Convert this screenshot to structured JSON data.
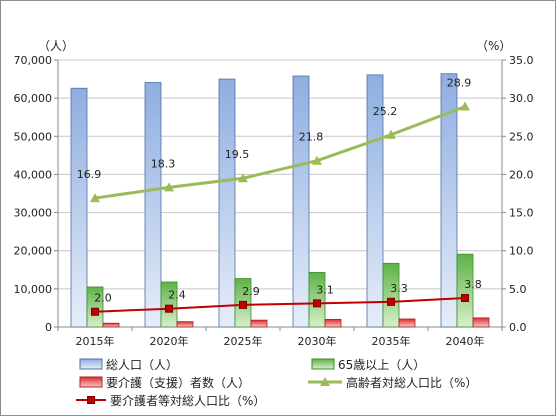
{
  "chart_data": {
    "type": "bar",
    "categories": [
      "2015年",
      "2020年",
      "2025年",
      "2030年",
      "2035年",
      "2040年"
    ],
    "y_left": {
      "unit_label": "（人）",
      "range": [
        0,
        70000
      ],
      "ticks": [
        0,
        10000,
        20000,
        30000,
        40000,
        50000,
        60000,
        70000
      ],
      "tick_labels": [
        "0",
        "10,000",
        "20,000",
        "30,000",
        "40,000",
        "50,000",
        "60,000",
        "70,000"
      ]
    },
    "y_right": {
      "unit_label": "（%）",
      "range": [
        0,
        35
      ],
      "ticks": [
        0,
        5,
        10,
        15,
        20,
        25,
        30,
        35
      ],
      "tick_labels": [
        "0.0",
        "5.0",
        "10.0",
        "15.0",
        "20.0",
        "25.0",
        "30.0",
        "35.0"
      ]
    },
    "series": [
      {
        "name": "総人口（人）",
        "kind": "bar",
        "axis": "left",
        "color": "#4f81bd",
        "values": [
          62600,
          64100,
          65000,
          65800,
          66100,
          66400
        ]
      },
      {
        "name": "65歳以上（人）",
        "kind": "bar",
        "axis": "left",
        "color": "#3a8f2a",
        "values": [
          10500,
          11800,
          12700,
          14300,
          16700,
          19100
        ]
      },
      {
        "name": "要介護（支援）者数（人）",
        "kind": "bar",
        "axis": "left",
        "color": "#c00000",
        "values": [
          1000,
          1400,
          1800,
          2000,
          2100,
          2400
        ]
      },
      {
        "name": "高齢者対総人口比（%）",
        "kind": "line",
        "axis": "right",
        "color": "#9bbb59",
        "values": [
          16.9,
          18.3,
          19.5,
          21.8,
          25.2,
          28.9
        ],
        "labels": [
          "16.9",
          "18.3",
          "19.5",
          "21.8",
          "25.2",
          "28.9"
        ]
      },
      {
        "name": "要介護者等対総人口比（%）",
        "kind": "line",
        "axis": "right",
        "color": "#c00000",
        "values": [
          2.0,
          2.4,
          2.9,
          3.1,
          3.3,
          3.8
        ],
        "labels": [
          "2.0",
          "2.4",
          "2.9",
          "3.1",
          "3.3",
          "3.8"
        ]
      }
    ],
    "grid": true,
    "legend_position": "bottom"
  }
}
